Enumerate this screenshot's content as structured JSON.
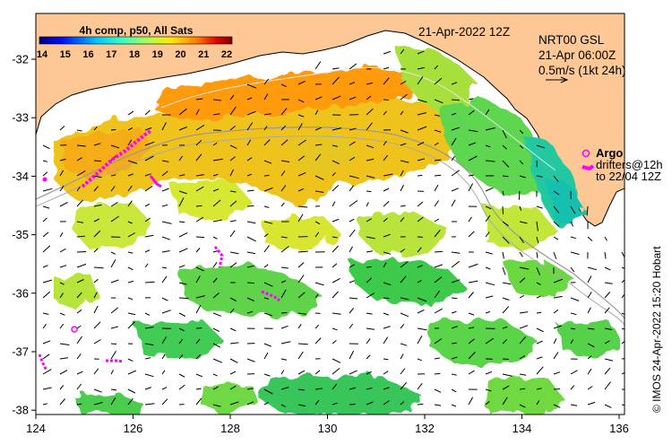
{
  "colorbar": {
    "title": "4h comp, p50, All Sats",
    "ticks": [
      "14",
      "15",
      "16",
      "17",
      "18",
      "19",
      "20",
      "21",
      "22"
    ],
    "colors": [
      "#00007f",
      "#0010ff",
      "#00a0ff",
      "#20ffdf",
      "#9fff60",
      "#ffe600",
      "#ff7a00",
      "#e00000",
      "#7f0000"
    ]
  },
  "header": {
    "date": "21-Apr-2022 12Z",
    "product": "NRT00 GSL",
    "time": "21-Apr 06:00Z",
    "vector_scale": "0.5m/s (1kt 24h)"
  },
  "legend": {
    "argo": "Argo",
    "drifters": "drifters@12h",
    "to": "to 22/04 12Z"
  },
  "axes": {
    "x_ticks": [
      "124",
      "126",
      "128",
      "130",
      "132",
      "134",
      "136"
    ],
    "y_ticks": [
      "-32",
      "-33",
      "-34",
      "-35",
      "-36",
      "-37",
      "-38"
    ]
  },
  "credit": "© IMOS 24-Apr-2022 15:20 Hobart",
  "colors": {
    "land": "#fdc895",
    "ocean": "#ffffff",
    "argo": "#ff00ff"
  }
}
